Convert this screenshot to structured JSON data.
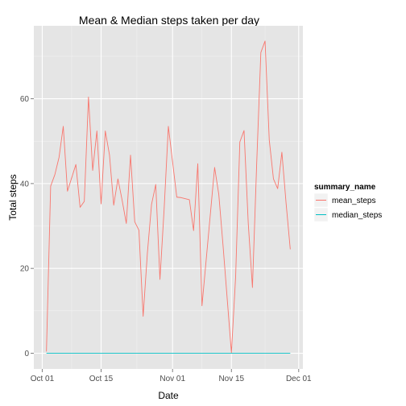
{
  "chart_data": {
    "type": "line",
    "title": "Mean & Median steps taken per day",
    "xlabel": "Date",
    "ylabel": "Total steps",
    "x_type": "date",
    "xlim": [
      "2012-09-29",
      "2012-12-02"
    ],
    "ylim": [
      -3.7,
      77.2
    ],
    "x_ticks": [
      {
        "value": "2012-10-01",
        "label": "Oct 01"
      },
      {
        "value": "2012-10-15",
        "label": "Oct 15"
      },
      {
        "value": "2012-11-01",
        "label": "Nov 01"
      },
      {
        "value": "2012-11-15",
        "label": "Nov 15"
      },
      {
        "value": "2012-12-01",
        "label": "Dec 01"
      }
    ],
    "y_ticks": [
      0,
      20,
      40,
      60
    ],
    "grid": true,
    "panel_background": "#e5e5e5",
    "legend": {
      "title": "summary_name",
      "position": "right",
      "entries": [
        {
          "name": "mean_steps",
          "color": "#F8766D"
        },
        {
          "name": "median_steps",
          "color": "#00BFC4"
        }
      ]
    },
    "series": [
      {
        "name": "mean_steps",
        "color": "#F8766D",
        "x": [
          "2012-10-02",
          "2012-10-03",
          "2012-10-04",
          "2012-10-05",
          "2012-10-06",
          "2012-10-07",
          "2012-10-09",
          "2012-10-10",
          "2012-10-11",
          "2012-10-12",
          "2012-10-13",
          "2012-10-14",
          "2012-10-15",
          "2012-10-16",
          "2012-10-17",
          "2012-10-18",
          "2012-10-19",
          "2012-10-20",
          "2012-10-21",
          "2012-10-22",
          "2012-10-23",
          "2012-10-24",
          "2012-10-25",
          "2012-10-26",
          "2012-10-27",
          "2012-10-28",
          "2012-10-29",
          "2012-10-30",
          "2012-10-31",
          "2012-11-02",
          "2012-11-03",
          "2012-11-05",
          "2012-11-06",
          "2012-11-07",
          "2012-11-08",
          "2012-11-11",
          "2012-11-12",
          "2012-11-13",
          "2012-11-15",
          "2012-11-16",
          "2012-11-17",
          "2012-11-18",
          "2012-11-19",
          "2012-11-20",
          "2012-11-21",
          "2012-11-22",
          "2012-11-23",
          "2012-11-24",
          "2012-11-25",
          "2012-11-26",
          "2012-11-27",
          "2012-11-28",
          "2012-11-29"
        ],
        "values": [
          0.4,
          39.4,
          42.1,
          46.2,
          53.5,
          38.2,
          44.5,
          34.4,
          35.8,
          60.4,
          43.1,
          52.4,
          35.2,
          52.4,
          46.7,
          34.9,
          41.1,
          36.1,
          30.6,
          46.7,
          31.0,
          29.0,
          8.7,
          23.5,
          35.1,
          39.8,
          17.4,
          34.1,
          53.5,
          36.8,
          36.7,
          36.2,
          28.9,
          44.7,
          11.2,
          43.8,
          37.4,
          25.5,
          0.1,
          18.0,
          49.8,
          52.5,
          30.7,
          15.5,
          44.4,
          70.9,
          73.6,
          50.3,
          41.1,
          38.8,
          47.4,
          35.4,
          24.5
        ]
      },
      {
        "name": "median_steps",
        "color": "#00BFC4",
        "x": [
          "2012-10-02",
          "2012-11-29"
        ],
        "values": [
          0,
          0
        ]
      }
    ]
  }
}
